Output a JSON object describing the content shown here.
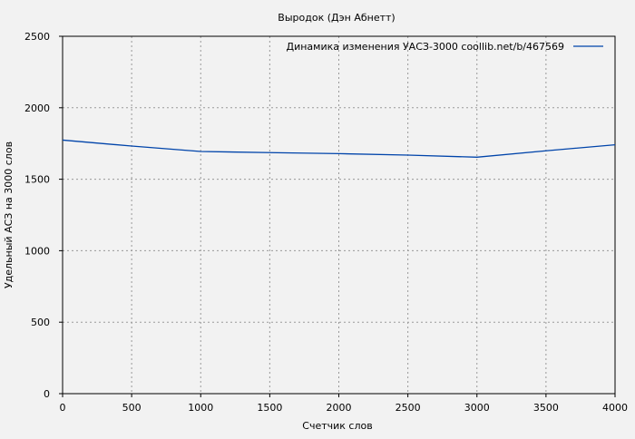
{
  "chart_data": {
    "type": "line",
    "title": "Выродок (Дэн Абнетт)",
    "xlabel": "Счетчик слов",
    "ylabel": "Удельный АСЗ на 3000 слов",
    "xlim": [
      0,
      4000
    ],
    "ylim": [
      0,
      2500
    ],
    "xticks": [
      0,
      500,
      1000,
      1500,
      2000,
      2500,
      3000,
      3500,
      4000
    ],
    "yticks": [
      0,
      500,
      1000,
      1500,
      2000,
      2500
    ],
    "grid": true,
    "legend_position": "top-right",
    "series": [
      {
        "name": "Динамика изменения УАСЗ-3000  coollib.net/b/467569",
        "color": "#0044aa",
        "x": [
          0,
          500,
          1000,
          1500,
          2000,
          2500,
          3000,
          3500,
          4000
        ],
        "y": [
          1774,
          1732,
          1694,
          1686,
          1679,
          1669,
          1654,
          1699,
          1741
        ]
      }
    ]
  }
}
